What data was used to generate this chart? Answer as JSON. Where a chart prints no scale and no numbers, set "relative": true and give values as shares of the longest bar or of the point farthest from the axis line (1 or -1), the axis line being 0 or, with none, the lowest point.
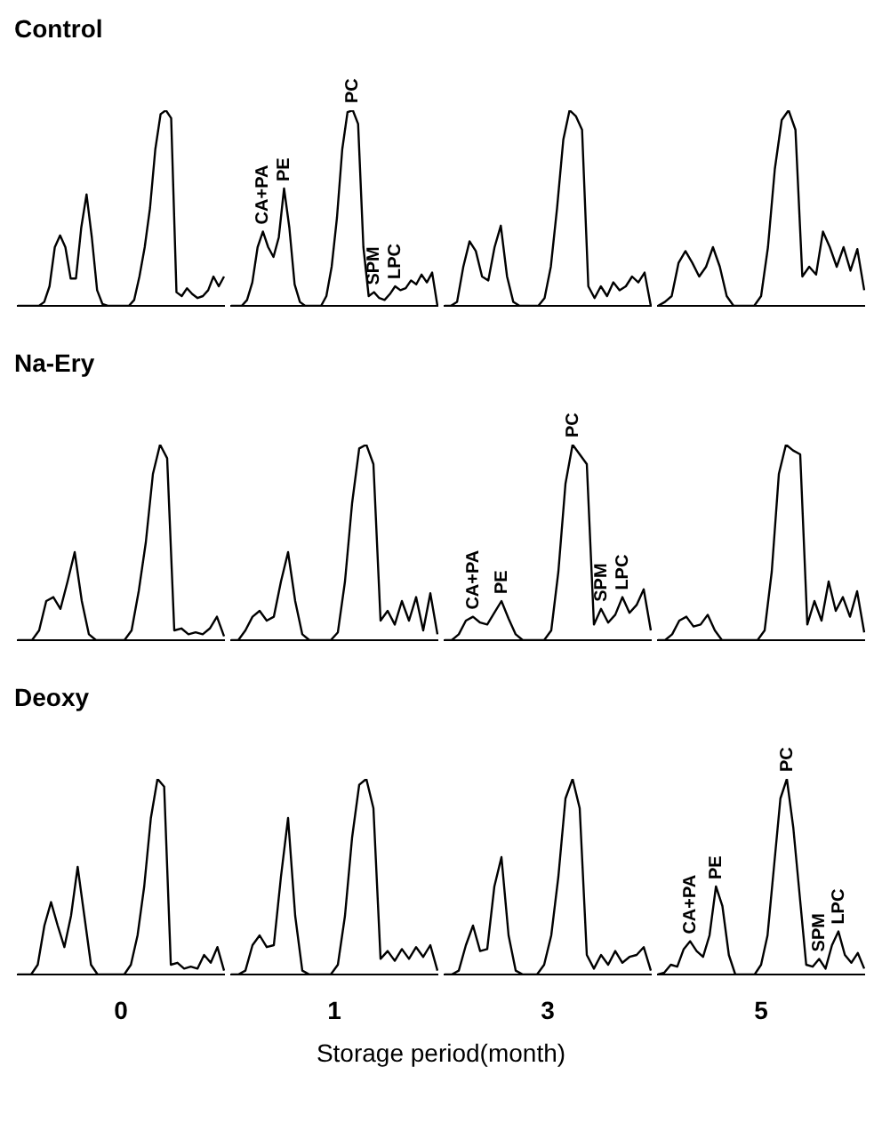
{
  "chart_data": [
    {
      "type": "line",
      "title": "Control",
      "relative": true,
      "color": "#000000",
      "categories": [
        null,
        null,
        null,
        null,
        null,
        null,
        null,
        null,
        null,
        null,
        null,
        null,
        null,
        null,
        null,
        null,
        null,
        null,
        null,
        null,
        null,
        null,
        null,
        null,
        null,
        null,
        null,
        null,
        null,
        null,
        null,
        null,
        null,
        null,
        null,
        null,
        null,
        null,
        null,
        null
      ],
      "values": [
        0,
        0,
        0,
        0,
        0,
        0.02,
        0.1,
        0.3,
        0.36,
        0.3,
        0.14,
        0.14,
        0.4,
        0.57,
        0.35,
        0.08,
        0.01,
        0,
        0,
        0,
        0,
        0,
        0.03,
        0.15,
        0.3,
        0.5,
        0.8,
        0.98,
        1,
        0.96,
        0.07,
        0.05,
        0.09,
        0.06,
        0.04,
        0.05,
        0.08,
        0.15,
        0.1,
        0.15
      ]
    },
    {
      "type": "line",
      "relative": true,
      "color": "#000000",
      "categories": [
        null,
        null,
        null,
        null,
        null,
        null,
        null,
        null,
        null,
        null,
        null,
        null,
        null,
        null,
        null,
        null,
        null,
        null,
        null,
        null,
        null,
        null,
        null,
        null,
        null,
        null,
        null,
        null,
        null,
        null,
        null,
        null,
        null,
        null,
        null,
        null,
        null,
        null,
        null,
        null
      ],
      "values": [
        0,
        0,
        0,
        0.03,
        0.12,
        0.3,
        0.38,
        0.3,
        0.25,
        0.35,
        0.6,
        0.4,
        0.11,
        0.02,
        0,
        0,
        0,
        0,
        0.05,
        0.2,
        0.45,
        0.8,
        0.99,
        1,
        0.93,
        0.3,
        0.05,
        0.07,
        0.04,
        0.03,
        0.06,
        0.1,
        0.08,
        0.09,
        0.13,
        0.11,
        0.16,
        0.12,
        0.17,
        0
      ],
      "annotations": [
        {
          "text": "CA+PA",
          "y": 0.38
        },
        {
          "text": "PE",
          "y": 0.6
        },
        {
          "text": "PC",
          "y": 1
        },
        {
          "text": "SPM",
          "y": 0.07
        },
        {
          "text": "LPC",
          "y": 0.1
        }
      ]
    },
    {
      "type": "line",
      "relative": true,
      "color": "#000000",
      "categories": [
        null,
        null,
        null,
        null,
        null,
        null,
        null,
        null,
        null,
        null,
        null,
        null,
        null,
        null,
        null,
        null,
        null,
        null,
        null,
        null,
        null,
        null,
        null,
        null,
        null,
        null,
        null,
        null,
        null,
        null,
        null,
        null,
        null,
        null
      ],
      "values": [
        0,
        0,
        0.02,
        0.2,
        0.33,
        0.28,
        0.15,
        0.13,
        0.3,
        0.41,
        0.15,
        0.02,
        0,
        0,
        0,
        0,
        0.04,
        0.2,
        0.5,
        0.85,
        1,
        0.97,
        0.9,
        0.1,
        0.04,
        0.1,
        0.05,
        0.12,
        0.08,
        0.1,
        0.15,
        0.12,
        0.17,
        0
      ]
    },
    {
      "type": "line",
      "relative": true,
      "color": "#000000",
      "categories": [
        null,
        null,
        null,
        null,
        null,
        null,
        null,
        null,
        null,
        null,
        null,
        null,
        null,
        null,
        null,
        null,
        null,
        null,
        null,
        null,
        null,
        null,
        null,
        null,
        null,
        null,
        null,
        null,
        null,
        null,
        null
      ],
      "values": [
        0,
        0.02,
        0.05,
        0.22,
        0.28,
        0.22,
        0.15,
        0.2,
        0.3,
        0.2,
        0.05,
        0,
        0,
        0,
        0,
        0.05,
        0.3,
        0.7,
        0.95,
        1,
        0.9,
        0.15,
        0.2,
        0.16,
        0.38,
        0.3,
        0.2,
        0.3,
        0.18,
        0.29,
        0.08
      ]
    },
    {
      "type": "line",
      "title": "Na-Ery",
      "relative": true,
      "color": "#000000",
      "categories": [
        null,
        null,
        null,
        null,
        null,
        null,
        null,
        null,
        null,
        null,
        null,
        null,
        null,
        null,
        null,
        null,
        null,
        null,
        null,
        null,
        null,
        null,
        null,
        null,
        null,
        null,
        null,
        null,
        null,
        null
      ],
      "values": [
        0,
        0,
        0,
        0.05,
        0.2,
        0.22,
        0.16,
        0.3,
        0.45,
        0.2,
        0.03,
        0,
        0,
        0,
        0,
        0,
        0.05,
        0.25,
        0.5,
        0.85,
        1,
        0.93,
        0.05,
        0.06,
        0.03,
        0.04,
        0.03,
        0.06,
        0.12,
        0.02
      ]
    },
    {
      "type": "line",
      "relative": true,
      "color": "#000000",
      "categories": [
        null,
        null,
        null,
        null,
        null,
        null,
        null,
        null,
        null,
        null,
        null,
        null,
        null,
        null,
        null,
        null,
        null,
        null,
        null,
        null,
        null,
        null,
        null,
        null,
        null,
        null,
        null,
        null,
        null,
        null
      ],
      "values": [
        0,
        0,
        0.05,
        0.12,
        0.15,
        0.1,
        0.12,
        0.3,
        0.45,
        0.2,
        0.03,
        0,
        0,
        0,
        0,
        0.04,
        0.3,
        0.7,
        0.98,
        1,
        0.9,
        0.1,
        0.15,
        0.08,
        0.2,
        0.1,
        0.22,
        0.05,
        0.24,
        0.03
      ]
    },
    {
      "type": "line",
      "relative": true,
      "color": "#000000",
      "categories": [
        null,
        null,
        null,
        null,
        null,
        null,
        null,
        null,
        null,
        null,
        null,
        null,
        null,
        null,
        null,
        null,
        null,
        null,
        null,
        null,
        null,
        null,
        null,
        null,
        null,
        null,
        null,
        null,
        null,
        null
      ],
      "values": [
        0,
        0,
        0.03,
        0.1,
        0.12,
        0.09,
        0.08,
        0.14,
        0.2,
        0.11,
        0.03,
        0,
        0,
        0,
        0,
        0.05,
        0.35,
        0.8,
        1,
        0.95,
        0.9,
        0.08,
        0.16,
        0.09,
        0.13,
        0.22,
        0.14,
        0.18,
        0.26,
        0.05
      ],
      "annotations": [
        {
          "text": "CA+PA",
          "y": 0.12
        },
        {
          "text": "PE",
          "y": 0.2
        },
        {
          "text": "PC",
          "y": 1
        },
        {
          "text": "SPM",
          "y": 0.16
        },
        {
          "text": "LPC",
          "y": 0.22
        }
      ]
    },
    {
      "type": "line",
      "relative": true,
      "color": "#000000",
      "categories": [
        null,
        null,
        null,
        null,
        null,
        null,
        null,
        null,
        null,
        null,
        null,
        null,
        null,
        null,
        null,
        null,
        null,
        null,
        null,
        null,
        null,
        null,
        null,
        null,
        null,
        null,
        null,
        null,
        null,
        null
      ],
      "values": [
        0,
        0,
        0.03,
        0.1,
        0.12,
        0.07,
        0.08,
        0.13,
        0.05,
        0,
        0,
        0,
        0,
        0,
        0,
        0.05,
        0.35,
        0.85,
        1,
        0.97,
        0.95,
        0.08,
        0.2,
        0.1,
        0.3,
        0.15,
        0.22,
        0.12,
        0.25,
        0.04
      ]
    },
    {
      "type": "line",
      "title": "Deoxy",
      "xlabel": "0",
      "relative": true,
      "color": "#000000",
      "categories": [
        null,
        null,
        null,
        null,
        null,
        null,
        null,
        null,
        null,
        null,
        null,
        null,
        null,
        null,
        null,
        null,
        null,
        null,
        null,
        null,
        null,
        null,
        null,
        null,
        null,
        null,
        null,
        null,
        null,
        null,
        null,
        null
      ],
      "values": [
        0,
        0,
        0,
        0.05,
        0.25,
        0.37,
        0.25,
        0.14,
        0.3,
        0.55,
        0.3,
        0.05,
        0,
        0,
        0,
        0,
        0,
        0.05,
        0.2,
        0.45,
        0.8,
        1,
        0.96,
        0.05,
        0.06,
        0.03,
        0.04,
        0.03,
        0.1,
        0.06,
        0.14,
        0.02
      ],
      "annotations": [
        "Storage period(month)"
      ]
    },
    {
      "type": "line",
      "xlabel": "1",
      "relative": true,
      "color": "#000000",
      "categories": [
        null,
        null,
        null,
        null,
        null,
        null,
        null,
        null,
        null,
        null,
        null,
        null,
        null,
        null,
        null,
        null,
        null,
        null,
        null,
        null,
        null,
        null,
        null,
        null,
        null,
        null,
        null,
        null,
        null,
        null
      ],
      "values": [
        0,
        0,
        0.02,
        0.15,
        0.2,
        0.14,
        0.15,
        0.5,
        0.8,
        0.3,
        0.02,
        0,
        0,
        0,
        0,
        0.05,
        0.3,
        0.7,
        0.97,
        1,
        0.85,
        0.08,
        0.12,
        0.07,
        0.13,
        0.08,
        0.14,
        0.09,
        0.15,
        0.02
      ]
    },
    {
      "type": "line",
      "xlabel": "3",
      "relative": true,
      "color": "#000000",
      "categories": [
        null,
        null,
        null,
        null,
        null,
        null,
        null,
        null,
        null,
        null,
        null,
        null,
        null,
        null,
        null,
        null,
        null,
        null,
        null,
        null,
        null,
        null,
        null,
        null,
        null,
        null,
        null,
        null,
        null,
        null
      ],
      "values": [
        0,
        0,
        0.02,
        0.15,
        0.25,
        0.12,
        0.13,
        0.45,
        0.6,
        0.2,
        0.02,
        0,
        0,
        0,
        0.05,
        0.2,
        0.5,
        0.9,
        1,
        0.85,
        0.1,
        0.03,
        0.1,
        0.05,
        0.12,
        0.06,
        0.09,
        0.1,
        0.14,
        0.02
      ]
    },
    {
      "type": "line",
      "xlabel": "5",
      "relative": true,
      "color": "#000000",
      "categories": [
        null,
        null,
        null,
        null,
        null,
        null,
        null,
        null,
        null,
        null,
        null,
        null,
        null,
        null,
        null,
        null,
        null,
        null,
        null,
        null,
        null,
        null,
        null,
        null,
        null,
        null,
        null,
        null,
        null,
        null,
        null,
        null,
        null
      ],
      "values": [
        0,
        0.01,
        0.05,
        0.04,
        0.13,
        0.17,
        0.12,
        0.09,
        0.2,
        0.45,
        0.35,
        0.1,
        0,
        0,
        0,
        0,
        0.05,
        0.2,
        0.55,
        0.9,
        1,
        0.75,
        0.4,
        0.05,
        0.04,
        0.08,
        0.03,
        0.15,
        0.22,
        0.1,
        0.06,
        0.11,
        0.03
      ],
      "annotations": [
        {
          "text": "CA+PA",
          "y": 0.17
        },
        {
          "text": "PE",
          "y": 0.45
        },
        {
          "text": "PC",
          "y": 1
        },
        {
          "text": "SPM",
          "y": 0.08
        },
        {
          "text": "LPC",
          "y": 0.22
        }
      ]
    }
  ]
}
